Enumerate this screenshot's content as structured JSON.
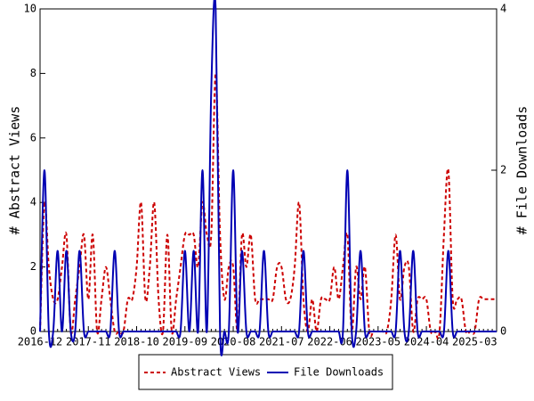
{
  "chart_data": {
    "type": "line",
    "ylabel": "# Abstract Views",
    "y2label": "# File Downloads",
    "categories": [
      "2016-12",
      null,
      null,
      null,
      null,
      null,
      null,
      null,
      null,
      null,
      null,
      "2017-11",
      null,
      null,
      null,
      null,
      null,
      null,
      null,
      null,
      null,
      null,
      "2018-10",
      null,
      null,
      null,
      null,
      null,
      null,
      null,
      null,
      null,
      null,
      "2019-09",
      null,
      null,
      null,
      null,
      null,
      null,
      null,
      null,
      null,
      null,
      "2020-08",
      null,
      null,
      null,
      null,
      null,
      null,
      null,
      null,
      null,
      null,
      "2021-07",
      null,
      null,
      null,
      null,
      null,
      null,
      null,
      null,
      null,
      null,
      "2022-06",
      null,
      null,
      null,
      null,
      null,
      null,
      null,
      null,
      null,
      null,
      "2023-05",
      null,
      null,
      null,
      null,
      null,
      null,
      null,
      null,
      null,
      null,
      "2024-04",
      null,
      null,
      null,
      null,
      null,
      null,
      null,
      null,
      null,
      null,
      "2025-03",
      null,
      null,
      null,
      null,
      null
    ],
    "series": [
      {
        "name": "Abstract Views",
        "color": "#cc0000",
        "dashed": true,
        "values": [
          0,
          4,
          2,
          1,
          1,
          2,
          3,
          0,
          1,
          2,
          3,
          1,
          3,
          0,
          1,
          2,
          1,
          0,
          0,
          0,
          1,
          1,
          2,
          4,
          1,
          2,
          4,
          1,
          0,
          3,
          0,
          1,
          2,
          3,
          3,
          3,
          2,
          4,
          3,
          3,
          8,
          3,
          1,
          2,
          2,
          0,
          3,
          2,
          3,
          1,
          1,
          1,
          1,
          1,
          2,
          2,
          1,
          1,
          2,
          4,
          1,
          0,
          1,
          0,
          1,
          1,
          1,
          2,
          1,
          2,
          3,
          0,
          2,
          1,
          2,
          0,
          0,
          0,
          0,
          0,
          1,
          3,
          1,
          2,
          2,
          0,
          1,
          1,
          1,
          0,
          0,
          0,
          3,
          5,
          1,
          1,
          1,
          0,
          0,
          0,
          1,
          1,
          1,
          1,
          1
        ]
      },
      {
        "name": "File Downloads",
        "color": "#0000b3",
        "axis": "y2",
        "values": [
          0,
          2,
          0,
          0,
          1,
          0,
          1,
          0,
          0,
          1,
          0,
          0,
          0,
          0,
          0,
          0,
          0,
          1,
          0,
          0,
          0,
          0,
          0,
          0,
          0,
          0,
          0,
          0,
          0,
          0,
          0,
          0,
          0,
          1,
          0,
          1,
          0,
          2,
          0,
          3,
          4,
          0,
          0,
          0,
          2,
          0,
          1,
          0,
          0,
          0,
          0,
          1,
          0,
          0,
          0,
          0,
          0,
          0,
          0,
          0,
          1,
          0,
          0,
          0,
          0,
          0,
          0,
          0,
          0,
          0,
          2,
          0,
          0,
          1,
          0,
          0,
          0,
          0,
          0,
          0,
          0,
          0,
          1,
          0,
          0,
          1,
          0,
          0,
          0,
          0,
          0,
          0,
          0,
          1,
          0,
          0,
          0,
          0,
          0,
          0,
          0,
          0,
          0,
          0,
          0
        ]
      }
    ],
    "ylim": [
      0,
      10
    ],
    "yticks": [
      0,
      2,
      4,
      6,
      8,
      10
    ],
    "y2lim": [
      0,
      4
    ],
    "y2ticks": [
      0,
      2,
      4
    ]
  }
}
